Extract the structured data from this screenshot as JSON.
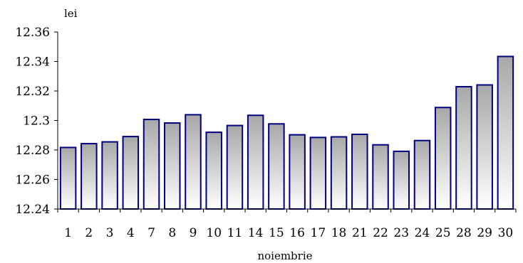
{
  "chart_data": {
    "type": "bar",
    "title": "",
    "ylabel": "lei",
    "xlabel": "noiembrie",
    "categories": [
      "1",
      "2",
      "3",
      "4",
      "7",
      "8",
      "9",
      "10",
      "11",
      "14",
      "15",
      "16",
      "17",
      "18",
      "21",
      "22",
      "23",
      "24",
      "25",
      "28",
      "29",
      "30"
    ],
    "values": [
      12.2817,
      12.2843,
      12.2855,
      12.2891,
      12.3007,
      12.2983,
      12.3039,
      12.292,
      12.2966,
      12.3035,
      12.2977,
      12.2903,
      12.2885,
      12.2889,
      12.2906,
      12.2835,
      12.2791,
      12.2864,
      12.3088,
      12.3229,
      12.3241,
      12.3434
    ],
    "ylim": [
      12.24,
      12.36
    ],
    "yticks": [
      "12.24",
      "12.26",
      "12.28",
      "12.3",
      "12.32",
      "12.34",
      "12.36"
    ],
    "grid": false,
    "legend": "none",
    "colors": {
      "bar_stroke": "#000080",
      "bar_fill_top": "#a8a8a8",
      "bar_fill_bottom": "#ffffff",
      "axis": "#000000"
    }
  }
}
